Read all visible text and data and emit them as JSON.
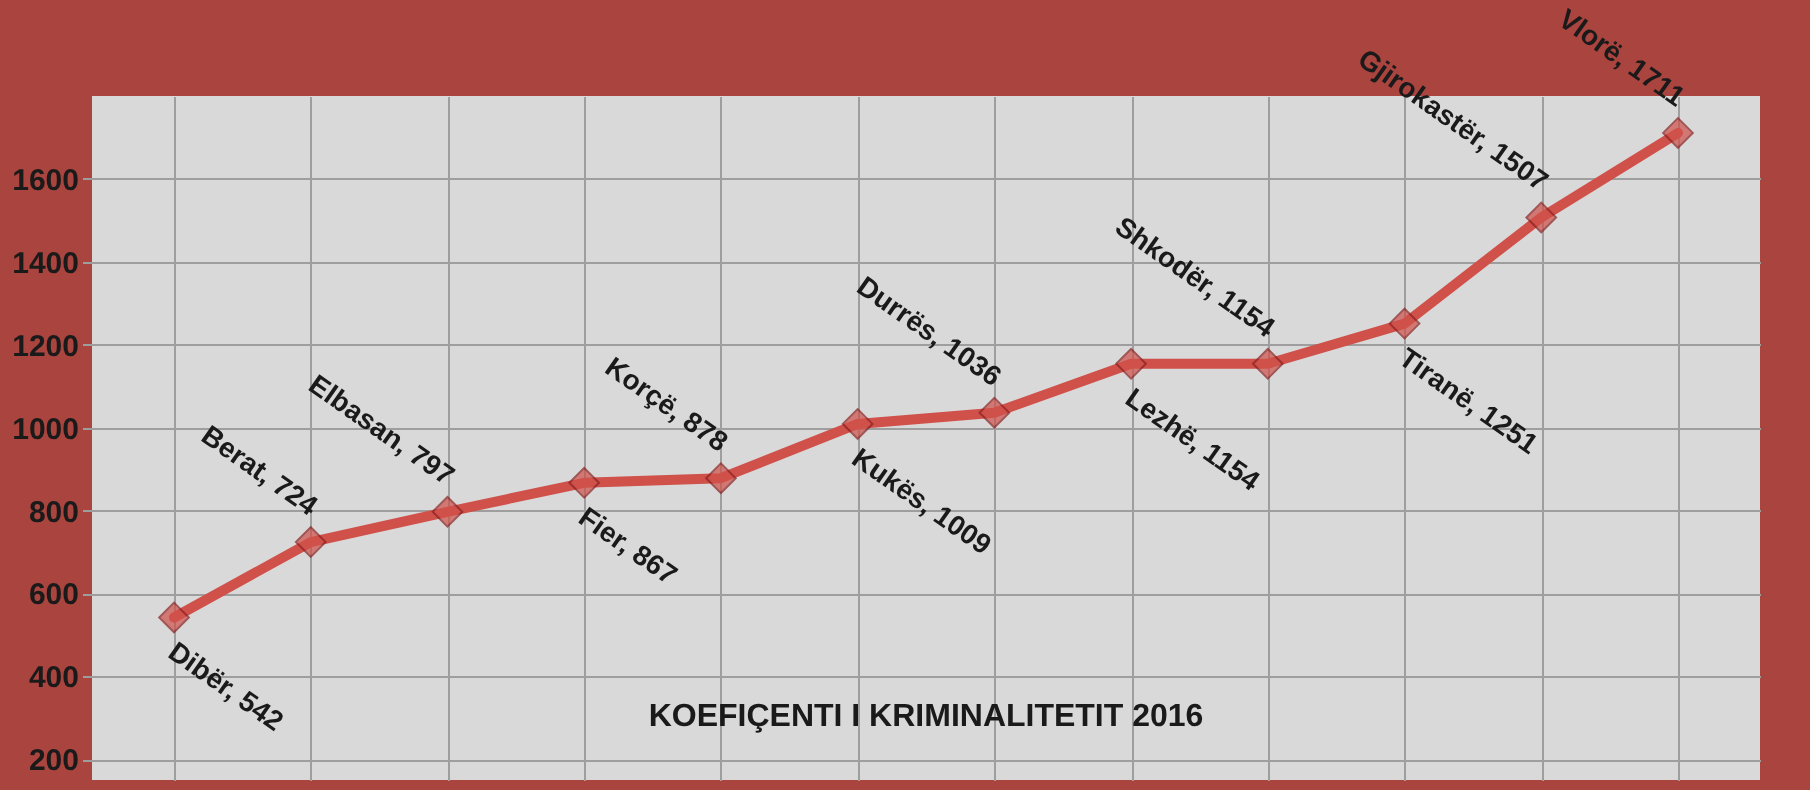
{
  "chart_data": {
    "type": "line",
    "title": "KOEFIÇENTI I KRIMINALITETIT 2016",
    "categories": [
      null,
      null,
      null,
      null,
      null,
      null,
      null,
      null,
      null,
      null,
      null,
      null
    ],
    "series": [
      {
        "color": "#d0504a",
        "values": [
          542,
          724,
          797,
          867,
          878,
          1009,
          1036,
          1154,
          1154,
          1251,
          1507,
          1711
        ],
        "value_labels": [
          "Dibër, 542",
          "Berat, 724",
          "Elbasan, 797",
          "Fier, 867",
          "Korçë, 878",
          "Kukës, 1009",
          "Durrës, 1036",
          "Lezhë, 1154",
          "Shkodër, 1154",
          "Tiranë, 1251",
          "Gjirokastër, 1507",
          "Vlorë, 1711"
        ]
      }
    ],
    "ylim": [
      150,
      1800
    ],
    "yticks": [
      200,
      400,
      600,
      800,
      1000,
      1200,
      1400,
      1600
    ],
    "grid": true,
    "marker": "diamond",
    "line_style": "solid",
    "tick_labels": "y"
  }
}
